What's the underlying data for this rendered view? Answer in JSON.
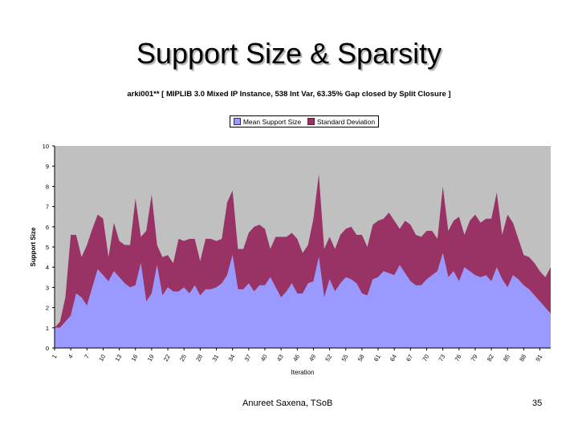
{
  "slide": {
    "title": "Support Size & Sparsity",
    "footer_author": "Anureet Saxena, TSoB",
    "page_number": "35"
  },
  "chart_data": {
    "type": "area",
    "title": "arki001** [ MIPLIB 3.0 Mixed IP Instance, 538 Int Var, 63.35% Gap closed by Split Closure ]",
    "xlabel": "Iteration",
    "ylabel": "Support Size",
    "ylim": [
      0,
      10
    ],
    "yticks": [
      "0",
      "1",
      "2",
      "3",
      "4",
      "5",
      "6",
      "7",
      "8",
      "9",
      "10"
    ],
    "xticks": [
      "1",
      "4",
      "7",
      "10",
      "13",
      "16",
      "19",
      "22",
      "25",
      "28",
      "31",
      "34",
      "37",
      "40",
      "43",
      "46",
      "49",
      "52",
      "55",
      "58",
      "61",
      "64",
      "67",
      "70",
      "73",
      "76",
      "79",
      "82",
      "85",
      "88",
      "91"
    ],
    "stacked": true,
    "legend_position": "top-center",
    "colors": {
      "plot_background": "#c0c0c0",
      "mean": "#9999ff",
      "std": "#993366"
    },
    "x": [
      1,
      2,
      3,
      4,
      5,
      6,
      7,
      8,
      9,
      10,
      11,
      12,
      13,
      14,
      15,
      16,
      17,
      18,
      19,
      20,
      21,
      22,
      23,
      24,
      25,
      26,
      27,
      28,
      29,
      30,
      31,
      32,
      33,
      34,
      35,
      36,
      37,
      38,
      39,
      40,
      41,
      42,
      43,
      44,
      45,
      46,
      47,
      48,
      49,
      50,
      51,
      52,
      53,
      54,
      55,
      56,
      57,
      58,
      59,
      60,
      61,
      62,
      63,
      64,
      65,
      66,
      67,
      68,
      69,
      70,
      71,
      72,
      73,
      74,
      75,
      76,
      77,
      78,
      79,
      80,
      81,
      82,
      83,
      84,
      85,
      86,
      87,
      88,
      89,
      90,
      91,
      92,
      93
    ],
    "series": [
      {
        "name": "Mean Support Size",
        "values": [
          1.0,
          1.0,
          1.3,
          1.6,
          2.7,
          2.5,
          2.1,
          3.0,
          3.9,
          3.6,
          3.3,
          3.8,
          3.5,
          3.2,
          3.0,
          3.1,
          4.2,
          2.3,
          2.7,
          4.1,
          2.6,
          3.0,
          2.8,
          2.8,
          3.0,
          2.7,
          3.1,
          2.6,
          2.9,
          2.9,
          3.0,
          3.2,
          3.6,
          4.6,
          2.9,
          2.9,
          3.2,
          2.8,
          3.1,
          3.1,
          3.5,
          3.0,
          2.5,
          2.8,
          3.2,
          2.7,
          2.7,
          3.2,
          3.3,
          4.5,
          2.5,
          3.4,
          2.8,
          3.2,
          3.5,
          3.4,
          3.2,
          2.7,
          2.6,
          3.4,
          3.5,
          3.8,
          3.7,
          3.6,
          4.1,
          3.7,
          3.3,
          3.1,
          3.1,
          3.4,
          3.6,
          3.8,
          4.7,
          3.5,
          3.8,
          3.3,
          4.0,
          3.8,
          3.6,
          3.5,
          3.6,
          3.3,
          4.0,
          3.4,
          3.0,
          3.6,
          3.4,
          3.1,
          2.9,
          2.6,
          2.3,
          2.0,
          1.7
        ]
      },
      {
        "name": "Standard Deviation",
        "values": [
          0.0,
          0.3,
          1.2,
          4.0,
          2.9,
          2.0,
          3.0,
          2.9,
          2.7,
          2.8,
          1.2,
          2.4,
          1.8,
          1.9,
          2.1,
          4.3,
          1.3,
          3.5,
          4.9,
          1.0,
          1.9,
          1.6,
          1.4,
          2.6,
          2.3,
          2.7,
          2.3,
          1.7,
          2.5,
          2.5,
          2.3,
          2.2,
          3.6,
          3.2,
          2.0,
          2.0,
          2.5,
          3.2,
          3.0,
          2.8,
          1.4,
          2.5,
          3.0,
          2.7,
          2.5,
          2.7,
          2.0,
          1.9,
          3.1,
          4.1,
          2.4,
          2.1,
          2.1,
          2.4,
          2.4,
          2.6,
          2.4,
          2.9,
          2.4,
          2.7,
          2.8,
          2.6,
          3.0,
          2.7,
          1.8,
          2.6,
          2.8,
          2.5,
          2.4,
          2.4,
          2.2,
          1.6,
          3.3,
          2.3,
          2.5,
          3.2,
          1.6,
          2.5,
          3.0,
          2.7,
          2.8,
          3.1,
          3.7,
          2.2,
          3.6,
          2.6,
          2.0,
          1.5,
          1.6,
          1.6,
          1.5,
          1.5,
          2.3
        ]
      }
    ]
  }
}
